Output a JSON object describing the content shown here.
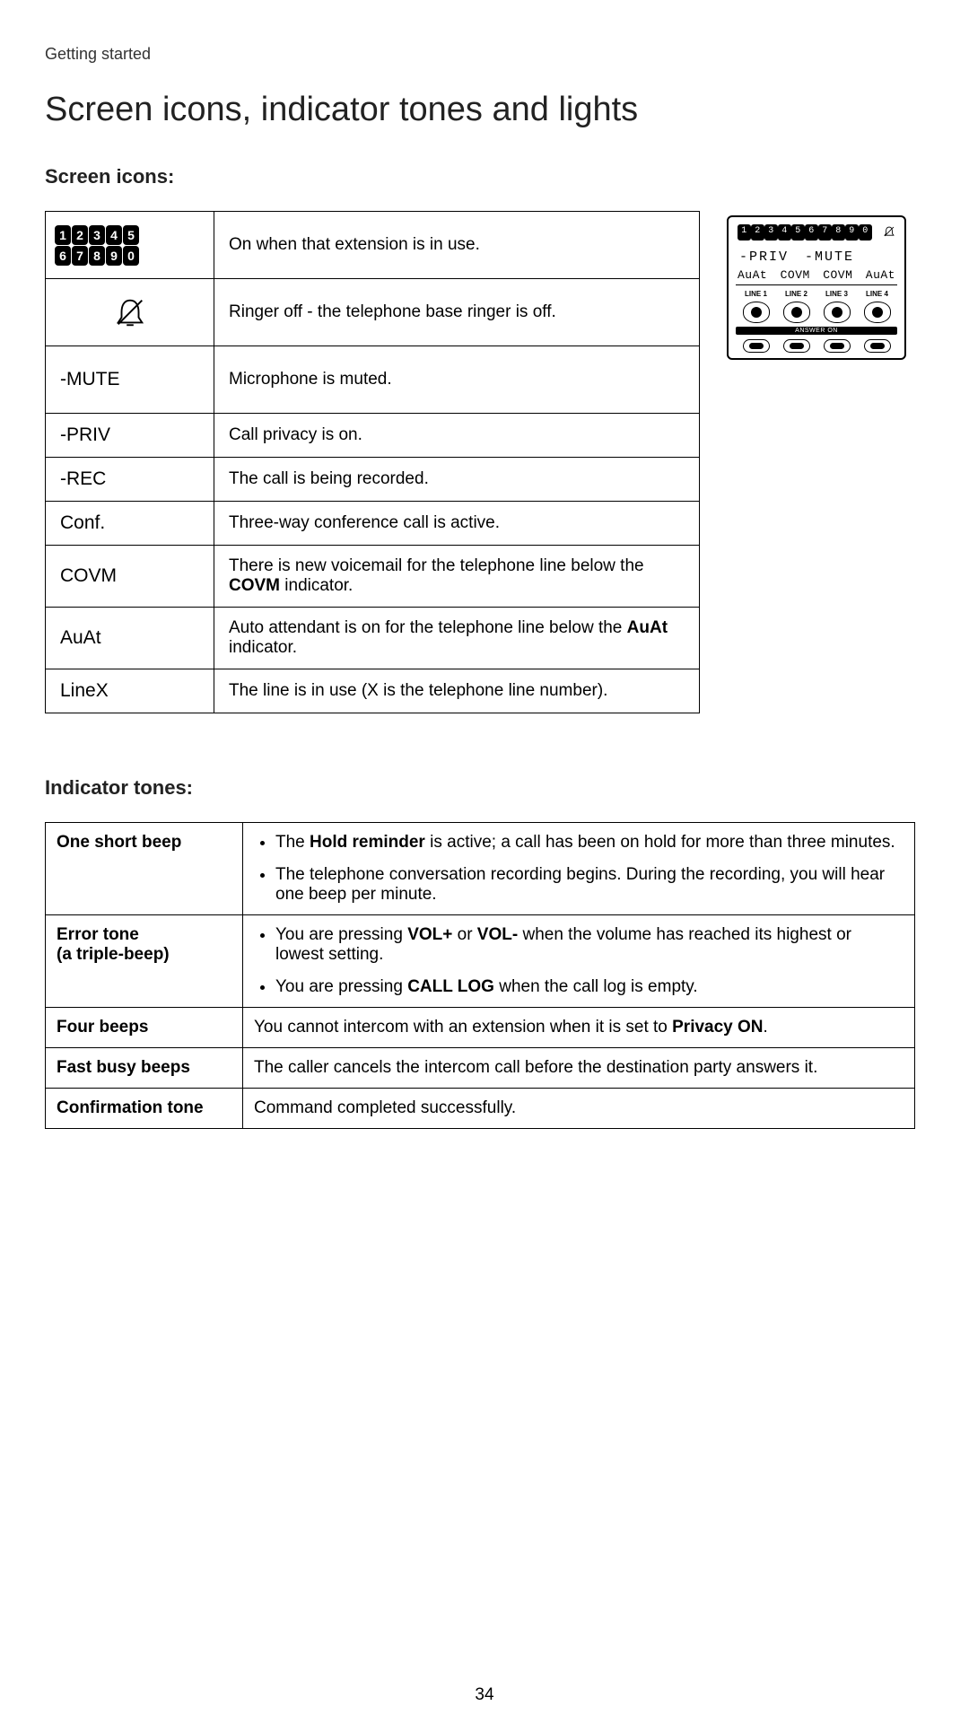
{
  "header": "Getting started",
  "title": "Screen icons, indicator tones and lights",
  "screen_icons_heading": "Screen icons:",
  "indicator_tones_heading": "Indicator tones:",
  "page_number": "34",
  "icons_table": {
    "rows": [
      {
        "icon_type": "digits",
        "digits": [
          "1",
          "2",
          "3",
          "4",
          "5",
          "6",
          "7",
          "8",
          "9",
          "0"
        ],
        "desc": "On when that extension is in use."
      },
      {
        "icon_type": "bell",
        "desc": "Ringer off - the telephone base ringer is off."
      },
      {
        "icon_type": "text",
        "label": "-MUTE",
        "desc": "Microphone is muted."
      },
      {
        "icon_type": "text",
        "label": "-PRIV",
        "desc": "Call privacy is on."
      },
      {
        "icon_type": "text",
        "label": "-REC",
        "desc": "The call is being recorded."
      },
      {
        "icon_type": "text",
        "label": "Conf.",
        "desc": "Three-way conference call is active."
      },
      {
        "icon_type": "text",
        "label": "COVM",
        "desc_pre": "There is new voicemail for the telephone line below the ",
        "desc_bold": "COVM",
        "desc_post": " indicator."
      },
      {
        "icon_type": "text",
        "label": "AuAt",
        "desc_pre": "Auto attendant is on for the telephone line below the ",
        "desc_bold": "AuAt",
        "desc_post": " indicator."
      },
      {
        "icon_type": "text",
        "label": "LineX",
        "desc": "The line is in use (X is the telephone line number)."
      }
    ]
  },
  "display": {
    "digits": [
      "1",
      "2",
      "3",
      "4",
      "5",
      "6",
      "7",
      "8",
      "9",
      "0"
    ],
    "filled": [
      0,
      1,
      2,
      3,
      4,
      5,
      6,
      7,
      8,
      9
    ],
    "row2": [
      "-PRIV",
      "-MUTE"
    ],
    "row3": [
      "AuAt",
      "COVM",
      "COVM",
      "AuAt"
    ],
    "line_labels": [
      "LINE 1",
      "LINE 2",
      "LINE 3",
      "LINE 4"
    ],
    "answer_on": "ANSWER ON"
  },
  "tones_table": {
    "rows": [
      {
        "label": "One short beep",
        "type": "list",
        "items": [
          {
            "pre": "The ",
            "bold": "Hold reminder",
            "post": " is active; a call has been on hold for more than three minutes."
          },
          {
            "text": "The telephone conversation recording begins. During the recording, you will hear one beep per minute."
          }
        ]
      },
      {
        "label_line1": "Error tone",
        "label_line2": "(a triple-beep)",
        "type": "list",
        "items": [
          {
            "pre": "You are pressing ",
            "bold": "VOL+",
            "mid": " or ",
            "bold2": "VOL-",
            "post": " when the volume has reached its highest or lowest setting."
          },
          {
            "pre": "You are pressing ",
            "bold": "CALL LOG",
            "post": " when the call log is empty."
          }
        ]
      },
      {
        "label": "Four beeps",
        "type": "text",
        "pre": "You cannot intercom with an extension when it is set to ",
        "bold": "Privacy ON",
        "post": "."
      },
      {
        "label": "Fast busy beeps",
        "type": "text",
        "text": "The caller cancels the intercom call before the destination party answers it."
      },
      {
        "label": "Confirmation tone",
        "type": "text",
        "text": "Command completed successfully."
      }
    ]
  }
}
